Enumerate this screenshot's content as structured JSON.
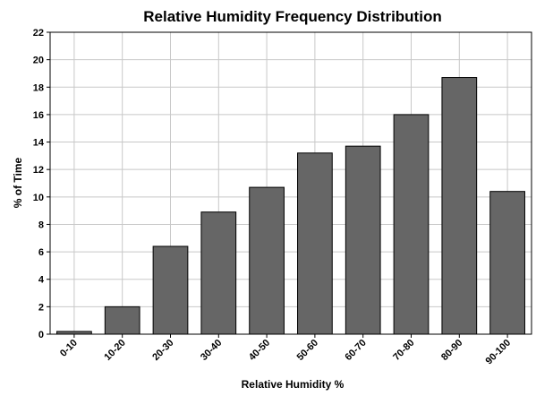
{
  "chart_data": {
    "type": "bar",
    "title": "Relative Humidity Frequency Distribution",
    "xlabel": "Relative Humidity %",
    "ylabel": "% of Time",
    "categories": [
      "0-10",
      "10-20",
      "20-30",
      "30-40",
      "40-50",
      "50-60",
      "60-70",
      "70-80",
      "80-90",
      "90-100"
    ],
    "values": [
      0.2,
      2.0,
      6.4,
      8.9,
      10.7,
      13.2,
      13.7,
      16.0,
      18.7,
      10.4
    ],
    "ylim": [
      0,
      22
    ],
    "yticks": [
      0,
      2,
      4,
      6,
      8,
      10,
      12,
      14,
      16,
      18,
      20,
      22
    ],
    "grid": true,
    "legend": "none",
    "bar_color": "#666666"
  }
}
